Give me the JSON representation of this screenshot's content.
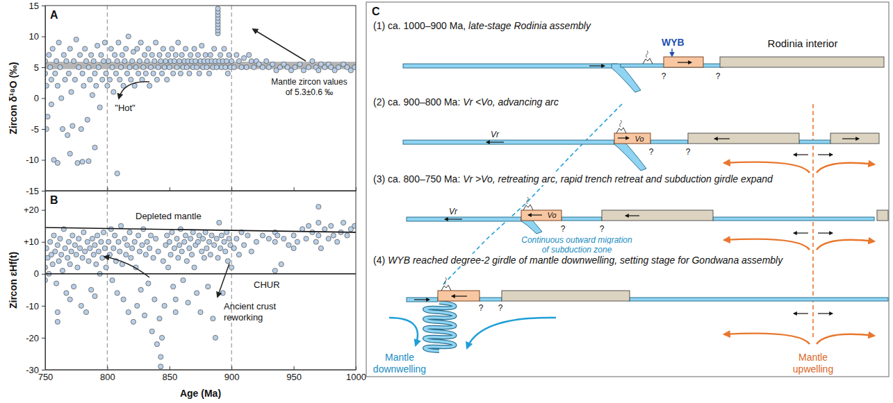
{
  "chart_data": [
    {
      "type": "scatter",
      "panel": "A",
      "y_label": "Zircon δ¹⁸O (‰)",
      "xlim": [
        750,
        1000
      ],
      "xticks": [
        750,
        800,
        850,
        900,
        950,
        1000
      ],
      "ylim": [
        -15,
        15
      ],
      "yticks": [
        -15,
        -10,
        -5,
        0,
        5,
        10,
        15
      ],
      "tick_labels": "y",
      "marker": "circle",
      "color": "#b9cfe8",
      "reference_lines_x": [
        800,
        900
      ],
      "reference_band": {
        "value": 5.3,
        "error": 0.6
      },
      "annotations": {
        "band": [
          "Mantle zircon values",
          "of 5.3±0.6 ‰"
        ],
        "hot": "\"Hot\""
      },
      "x": [
        750,
        750,
        751,
        751,
        752,
        753,
        754,
        755,
        755,
        756,
        757,
        758,
        759,
        760,
        760,
        761,
        762,
        763,
        764,
        765,
        766,
        767,
        768,
        769,
        770,
        770,
        771,
        772,
        773,
        774,
        775,
        776,
        777,
        778,
        779,
        780,
        780,
        781,
        782,
        783,
        784,
        785,
        785,
        786,
        787,
        788,
        789,
        790,
        790,
        791,
        792,
        793,
        794,
        795,
        796,
        797,
        798,
        799,
        800,
        801,
        802,
        803,
        804,
        805,
        806,
        807,
        808,
        808,
        809,
        810,
        811,
        812,
        813,
        814,
        815,
        816,
        817,
        818,
        819,
        820,
        821,
        822,
        823,
        824,
        825,
        826,
        827,
        828,
        829,
        830,
        831,
        832,
        833,
        834,
        835,
        836,
        837,
        838,
        839,
        840,
        841,
        842,
        843,
        844,
        845,
        846,
        847,
        848,
        849,
        850,
        851,
        852,
        853,
        854,
        855,
        856,
        857,
        858,
        859,
        860,
        861,
        862,
        863,
        864,
        865,
        866,
        867,
        868,
        869,
        870,
        871,
        872,
        873,
        874,
        875,
        876,
        877,
        878,
        879,
        880,
        881,
        882,
        883,
        884,
        885,
        886,
        887,
        888,
        889,
        889,
        889,
        889,
        889,
        889,
        889,
        889,
        889,
        890,
        891,
        892,
        893,
        894,
        895,
        896,
        897,
        898,
        899,
        900,
        902,
        904,
        906,
        908,
        910,
        912,
        914,
        916,
        918,
        920,
        922,
        925,
        928,
        930,
        933,
        936,
        939,
        942,
        945,
        948,
        951,
        955,
        958,
        962,
        965,
        968,
        970,
        972,
        975,
        978,
        980,
        983,
        986,
        990,
        993,
        996,
        999
      ],
      "values": [
        4,
        6,
        2,
        -5,
        -3,
        7,
        5,
        3,
        -1,
        8,
        -10,
        4,
        6,
        -10.5,
        2,
        9,
        5,
        0,
        -5,
        7,
        3,
        6,
        -6,
        4,
        -9,
        8,
        1,
        -4.5,
        6,
        3,
        9.5,
        -10.5,
        5,
        7,
        -5,
        -10.3,
        4,
        2,
        8,
        6,
        -3.5,
        -10.2,
        5,
        3,
        7,
        0.5,
        6,
        -8,
        4,
        2,
        8.5,
        5,
        -1.5,
        7,
        3,
        6,
        9,
        4,
        2,
        6,
        3,
        8,
        5,
        1,
        7,
        4,
        -12.2,
        6,
        9,
        3,
        5,
        7,
        2,
        6,
        8,
        4,
        10,
        5,
        3,
        6,
        7.5,
        2,
        5,
        8,
        4,
        6,
        9,
        3,
        5,
        7,
        4,
        6,
        8,
        2,
        5,
        7,
        4,
        6,
        9,
        3,
        5,
        7,
        6,
        4,
        8,
        5,
        6,
        3,
        7,
        5,
        6,
        8,
        4,
        6,
        7,
        5,
        9,
        6,
        4,
        7,
        5,
        6,
        8,
        5,
        6,
        4,
        7,
        6,
        5,
        8,
        6,
        5,
        7,
        4,
        6,
        8.5,
        5,
        6,
        7,
        5,
        6,
        4,
        7,
        6,
        5,
        8,
        6,
        5,
        10.5,
        11,
        11.5,
        12,
        12.5,
        13,
        13.5,
        14,
        14.5,
        6,
        7,
        5,
        6,
        8,
        5,
        6,
        4,
        7,
        5,
        6,
        5,
        7,
        6,
        5,
        6.5,
        5,
        7,
        6,
        5,
        6,
        5.5,
        5,
        6,
        5,
        5.5,
        4.5,
        5,
        5.5,
        5,
        4.5,
        5,
        5.5,
        4.5,
        5,
        6,
        5,
        4.5,
        5.5,
        5,
        5.5,
        5,
        4.5,
        5,
        5.5,
        5,
        4.5,
        5
      ]
    },
    {
      "type": "scatter",
      "panel": "B",
      "x_label": "Age (Ma)",
      "y_label": "Zircon εHf(t)",
      "xlim": [
        750,
        1000
      ],
      "xticks": [
        750,
        800,
        850,
        900,
        950,
        1000
      ],
      "ylim": [
        -30,
        26
      ],
      "yticks": [
        -30,
        -20,
        -10,
        0,
        {
          "value": 10,
          "label": "+10"
        },
        {
          "value": 20,
          "label": "+20"
        }
      ],
      "marker": "circle",
      "color": "#b9cfe8",
      "reference_lines_x": [
        800,
        900
      ],
      "reference_lines": [
        {
          "name": "Depleted mantle",
          "x": [
            750,
            1000
          ],
          "values": [
            14.5,
            13
          ]
        },
        {
          "name": "CHUR",
          "x": [
            750,
            1000
          ],
          "values": [
            0,
            0
          ]
        }
      ],
      "annotations": {
        "crust": [
          "Ancient crust",
          "reworking"
        ]
      },
      "x": [
        750,
        750,
        751,
        752,
        753,
        754,
        755,
        756,
        757,
        758,
        759,
        760,
        760,
        760,
        761,
        762,
        763,
        764,
        765,
        766,
        767,
        768,
        769,
        770,
        770,
        771,
        772,
        773,
        774,
        775,
        776,
        777,
        778,
        779,
        780,
        781,
        782,
        783,
        784,
        785,
        786,
        787,
        788,
        789,
        790,
        790,
        791,
        792,
        793,
        794,
        795,
        796,
        797,
        798,
        799,
        801,
        802,
        803,
        804,
        805,
        806,
        807,
        808,
        809,
        810,
        811,
        812,
        813,
        814,
        815,
        816,
        817,
        818,
        819,
        820,
        821,
        822,
        823,
        824,
        825,
        826,
        827,
        828,
        829,
        830,
        831,
        832,
        833,
        834,
        835,
        836,
        837,
        838,
        839,
        840,
        841,
        842,
        843,
        843,
        844,
        845,
        846,
        847,
        848,
        849,
        850,
        851,
        852,
        853,
        854,
        855,
        855,
        856,
        857,
        858,
        859,
        860,
        861,
        862,
        863,
        864,
        865,
        866,
        867,
        868,
        869,
        870,
        871,
        872,
        873,
        874,
        875,
        876,
        877,
        878,
        879,
        880,
        881,
        882,
        883,
        884,
        885,
        886,
        887,
        888,
        889,
        890,
        891,
        892,
        893,
        894,
        895,
        896,
        897,
        898,
        899,
        900,
        902,
        904,
        906,
        908,
        910,
        913,
        916,
        920,
        925,
        930,
        935,
        935,
        935,
        937,
        940,
        942,
        946,
        950,
        950,
        953,
        957,
        960,
        962,
        965,
        968,
        970,
        970,
        970,
        972,
        975,
        978,
        980,
        982,
        985,
        988,
        990,
        993,
        996,
        999
      ],
      "values": [
        2,
        -2,
        8,
        5,
        0,
        10,
        6,
        3,
        12,
        7,
        -3,
        -12,
        -15,
        9,
        4,
        11,
        6,
        1,
        14,
        8,
        -6,
        5,
        10,
        -8,
        3,
        7,
        12,
        -4,
        9,
        6,
        2,
        11,
        8,
        -10,
        5,
        13,
        7,
        -12,
        10,
        4,
        8,
        -5,
        11,
        6,
        -7,
        9,
        3,
        12,
        7,
        0,
        10,
        5,
        13,
        8,
        2,
        10,
        6,
        14,
        -2,
        8,
        12,
        4,
        -6,
        10,
        7,
        15,
        3,
        -8,
        11,
        6,
        9,
        -12,
        13,
        5,
        8,
        -15,
        10,
        2,
        -10,
        12,
        7,
        -5,
        9,
        14,
        -13,
        6,
        10,
        -3,
        8,
        12,
        -18,
        5,
        -8,
        11,
        -22,
        7,
        -14,
        -26,
        -29,
        -20,
        4,
        -10,
        9,
        12,
        2,
        10,
        6,
        13,
        -4,
        8,
        -12,
        -8,
        11,
        5,
        9,
        14,
        7,
        -2,
        10,
        12,
        4,
        -9,
        8,
        11,
        6,
        13,
        2,
        9,
        -6,
        10,
        12,
        -12,
        7,
        11,
        5,
        13,
        8,
        -4,
        10,
        6,
        12,
        -14,
        9,
        -20,
        11,
        5,
        16,
        8,
        12,
        -6,
        10,
        7,
        13,
        4,
        11,
        9,
        2,
        8,
        11,
        6,
        13,
        9,
        12,
        7,
        10,
        12,
        11,
        13,
        10,
        1,
        12,
        3,
        11,
        9,
        12,
        8,
        10,
        14,
        11,
        15,
        13,
        10,
        12,
        16,
        21,
        8,
        14,
        11,
        15,
        12,
        10,
        13,
        16,
        12,
        14,
        15
      ]
    }
  ],
  "diagram": {
    "panel": "C",
    "stages": [
      {
        "heading": "(1) ca. 1000–900 Ma,",
        "description": "late-stage Rodinia assembly",
        "uncertain": [
          "?",
          "?"
        ]
      },
      {
        "heading": "(2) ca. 900–800 Ma:",
        "description": "Vr <Vo, advancing arc",
        "velocities": [
          "Vr",
          "Vo"
        ],
        "uncertain": [
          "?",
          "?"
        ]
      },
      {
        "heading": "(3) ca. 800–750 Ma:",
        "description": "Vr >Vo, retreating arc, rapid trench retreat and subduction girdle expand",
        "velocities": [
          "Vr",
          "Vo"
        ],
        "uncertain": [
          "?",
          "?"
        ]
      },
      {
        "heading": "(4)",
        "description": "WYB reached degree-2 girdle of mantle downwelling, setting stage for Gondwana assembly",
        "uncertain": [
          "?",
          "?"
        ]
      }
    ],
    "labels": {
      "wyb": "WYB",
      "interior": "Rodinia interior",
      "migration": [
        "Continuous outward migration",
        "of subduction zone"
      ],
      "downwelling": [
        "Mantle",
        "downwelling"
      ],
      "upwelling": [
        "Mantle",
        "upwelling"
      ]
    }
  }
}
